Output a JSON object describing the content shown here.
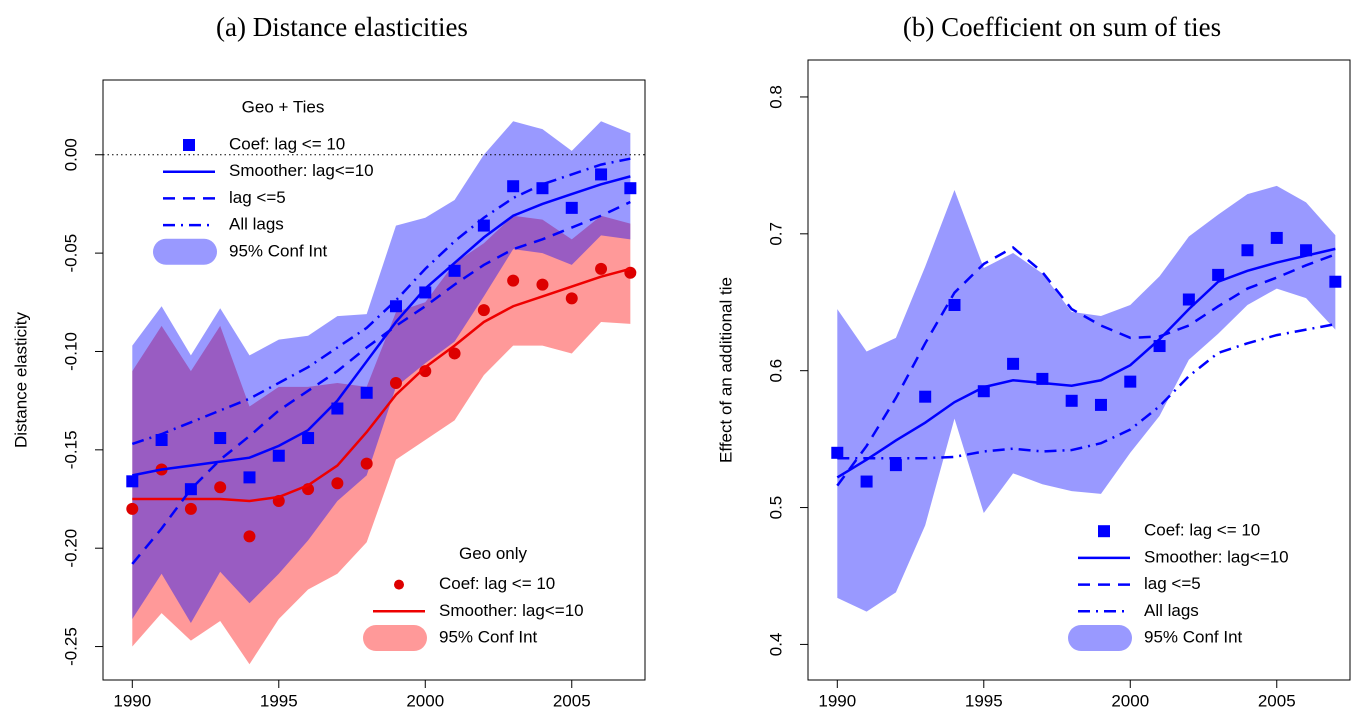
{
  "chart_data": [
    {
      "type": "line",
      "title": "(a) Distance elasticities",
      "ylabel": "Distance elasticity",
      "x": [
        1990,
        1991,
        1992,
        1993,
        1994,
        1995,
        1996,
        1997,
        1998,
        1999,
        2000,
        2001,
        2002,
        2003,
        2004,
        2005,
        2006,
        2007
      ],
      "xlim": [
        1989.0,
        2007.5
      ],
      "ylim": [
        -0.267,
        0.038
      ],
      "xticks": [
        1990,
        1995,
        2000,
        2005
      ],
      "yticks": [
        {
          "value": 0,
          "label": "0.00"
        },
        -0.05,
        {
          "value": -0.1,
          "label": "-0.10"
        },
        -0.15,
        {
          "value": -0.2,
          "label": "-0.20"
        },
        -0.25
      ],
      "hline": 0,
      "groups": [
        {
          "title": "Geo + Ties",
          "legend_position": "top-left",
          "series": [
            {
              "name": "Coef: lag <= 10",
              "style": "points",
              "marker": "square",
              "color": "#0000ff",
              "values": [
                -0.166,
                -0.145,
                -0.17,
                -0.144,
                -0.164,
                -0.153,
                -0.144,
                -0.129,
                -0.121,
                -0.077,
                -0.07,
                -0.059,
                -0.036,
                -0.016,
                -0.017,
                -0.027,
                -0.01,
                -0.017
              ]
            },
            {
              "name": "Smoother: lag<=10",
              "style": "solid",
              "color": "#0000ff",
              "values": [
                -0.163,
                -0.16,
                -0.158,
                -0.156,
                -0.154,
                -0.148,
                -0.14,
                -0.125,
                -0.105,
                -0.085,
                -0.068,
                -0.055,
                -0.042,
                -0.031,
                -0.025,
                -0.02,
                -0.015,
                -0.011
              ]
            },
            {
              "name": "lag <=5",
              "style": "dashed",
              "color": "#0000ff",
              "values": [
                -0.208,
                -0.19,
                -0.17,
                -0.155,
                -0.143,
                -0.13,
                -0.12,
                -0.11,
                -0.098,
                -0.087,
                -0.077,
                -0.066,
                -0.056,
                -0.048,
                -0.043,
                -0.037,
                -0.031,
                -0.024
              ]
            },
            {
              "name": "All lags",
              "style": "dotdash",
              "color": "#0000ff",
              "values": [
                -0.147,
                -0.142,
                -0.136,
                -0.13,
                -0.124,
                -0.116,
                -0.108,
                -0.098,
                -0.088,
                -0.074,
                -0.058,
                -0.044,
                -0.032,
                -0.022,
                -0.015,
                -0.01,
                -0.005,
                -0.002
              ]
            },
            {
              "name": "95% Conf Int",
              "style": "band",
              "color": "rgba(0,0,255,0.4)",
              "upper": [
                -0.097,
                -0.077,
                -0.102,
                -0.078,
                -0.102,
                -0.094,
                -0.092,
                -0.082,
                -0.081,
                -0.036,
                -0.032,
                -0.023,
                0.0,
                0.017,
                0.013,
                0.002,
                0.017,
                0.011
              ],
              "lower": [
                -0.236,
                -0.213,
                -0.238,
                -0.212,
                -0.228,
                -0.213,
                -0.196,
                -0.176,
                -0.163,
                -0.118,
                -0.106,
                -0.095,
                -0.072,
                -0.048,
                -0.05,
                -0.056,
                -0.041,
                -0.043
              ]
            }
          ]
        },
        {
          "title": "Geo only",
          "legend_position": "bottom-right",
          "series": [
            {
              "name": "Coef: lag <= 10",
              "style": "points",
              "marker": "circle",
              "color": "#dd0000",
              "values": [
                -0.18,
                -0.16,
                -0.18,
                -0.169,
                -0.194,
                -0.176,
                -0.17,
                -0.167,
                -0.157,
                -0.116,
                -0.11,
                -0.101,
                -0.079,
                -0.064,
                -0.066,
                -0.073,
                -0.058,
                -0.06
              ]
            },
            {
              "name": "Smoother: lag<=10",
              "style": "solid",
              "color": "#ee0000",
              "values": [
                -0.175,
                -0.175,
                -0.175,
                -0.175,
                -0.176,
                -0.174,
                -0.168,
                -0.158,
                -0.141,
                -0.122,
                -0.108,
                -0.097,
                -0.085,
                -0.077,
                -0.072,
                -0.067,
                -0.062,
                -0.058
              ]
            },
            {
              "name": "95% Conf Int",
              "style": "band",
              "color": "rgba(255,0,0,0.4)",
              "upper": [
                -0.11,
                -0.087,
                -0.11,
                -0.087,
                -0.128,
                -0.118,
                -0.118,
                -0.116,
                -0.118,
                -0.08,
                -0.075,
                -0.055,
                -0.045,
                -0.031,
                -0.033,
                -0.043,
                -0.031,
                -0.035
              ],
              "lower": [
                -0.25,
                -0.233,
                -0.247,
                -0.237,
                -0.259,
                -0.236,
                -0.221,
                -0.213,
                -0.197,
                -0.155,
                -0.145,
                -0.135,
                -0.112,
                -0.097,
                -0.097,
                -0.101,
                -0.085,
                -0.086
              ]
            }
          ]
        }
      ]
    },
    {
      "type": "line",
      "title": "(b) Coefficient on sum of ties",
      "ylabel": "Effect of an additional tie",
      "x": [
        1990,
        1991,
        1992,
        1993,
        1994,
        1995,
        1996,
        1997,
        1998,
        1999,
        2000,
        2001,
        2002,
        2003,
        2004,
        2005,
        2006,
        2007
      ],
      "xlim": [
        1989.0,
        2007.5
      ],
      "ylim": [
        0.374,
        0.827
      ],
      "xticks": [
        1990,
        1995,
        2000,
        2005
      ],
      "yticks": [
        0.4,
        0.5,
        0.6,
        0.7,
        0.8
      ],
      "groups": [
        {
          "legend_position": "bottom-right",
          "series": [
            {
              "name": "Coef: lag <= 10",
              "style": "points",
              "marker": "square",
              "color": "#0000ff",
              "values": [
                0.54,
                0.519,
                0.531,
                0.581,
                0.648,
                0.585,
                0.605,
                0.594,
                0.578,
                0.575,
                0.592,
                0.618,
                0.652,
                0.67,
                0.688,
                0.697,
                0.688,
                0.665
              ]
            },
            {
              "name": "Smoother: lag<=10",
              "style": "solid",
              "color": "#0000ff",
              "values": [
                0.522,
                0.535,
                0.549,
                0.562,
                0.577,
                0.588,
                0.593,
                0.591,
                0.589,
                0.593,
                0.604,
                0.623,
                0.645,
                0.665,
                0.673,
                0.679,
                0.684,
                0.689
              ]
            },
            {
              "name": "lag <=5",
              "style": "dashed",
              "color": "#0000ff",
              "values": [
                0.516,
                0.545,
                0.58,
                0.62,
                0.657,
                0.678,
                0.69,
                0.672,
                0.645,
                0.633,
                0.624,
                0.625,
                0.633,
                0.647,
                0.66,
                0.668,
                0.677,
                0.685
              ]
            },
            {
              "name": "All lags",
              "style": "dotdash",
              "color": "#0000ff",
              "values": [
                0.536,
                0.536,
                0.536,
                0.536,
                0.537,
                0.541,
                0.543,
                0.541,
                0.542,
                0.547,
                0.557,
                0.574,
                0.596,
                0.613,
                0.62,
                0.626,
                0.63,
                0.634
              ]
            },
            {
              "name": "95% Conf Int",
              "style": "band",
              "color": "rgba(0,0,255,0.4)",
              "upper": [
                0.645,
                0.614,
                0.624,
                0.676,
                0.732,
                0.675,
                0.686,
                0.671,
                0.643,
                0.64,
                0.648,
                0.669,
                0.698,
                0.714,
                0.729,
                0.735,
                0.723,
                0.699
              ],
              "lower": [
                0.434,
                0.424,
                0.438,
                0.487,
                0.565,
                0.496,
                0.525,
                0.517,
                0.512,
                0.51,
                0.54,
                0.567,
                0.608,
                0.627,
                0.648,
                0.66,
                0.653,
                0.63
              ]
            }
          ]
        }
      ]
    }
  ]
}
